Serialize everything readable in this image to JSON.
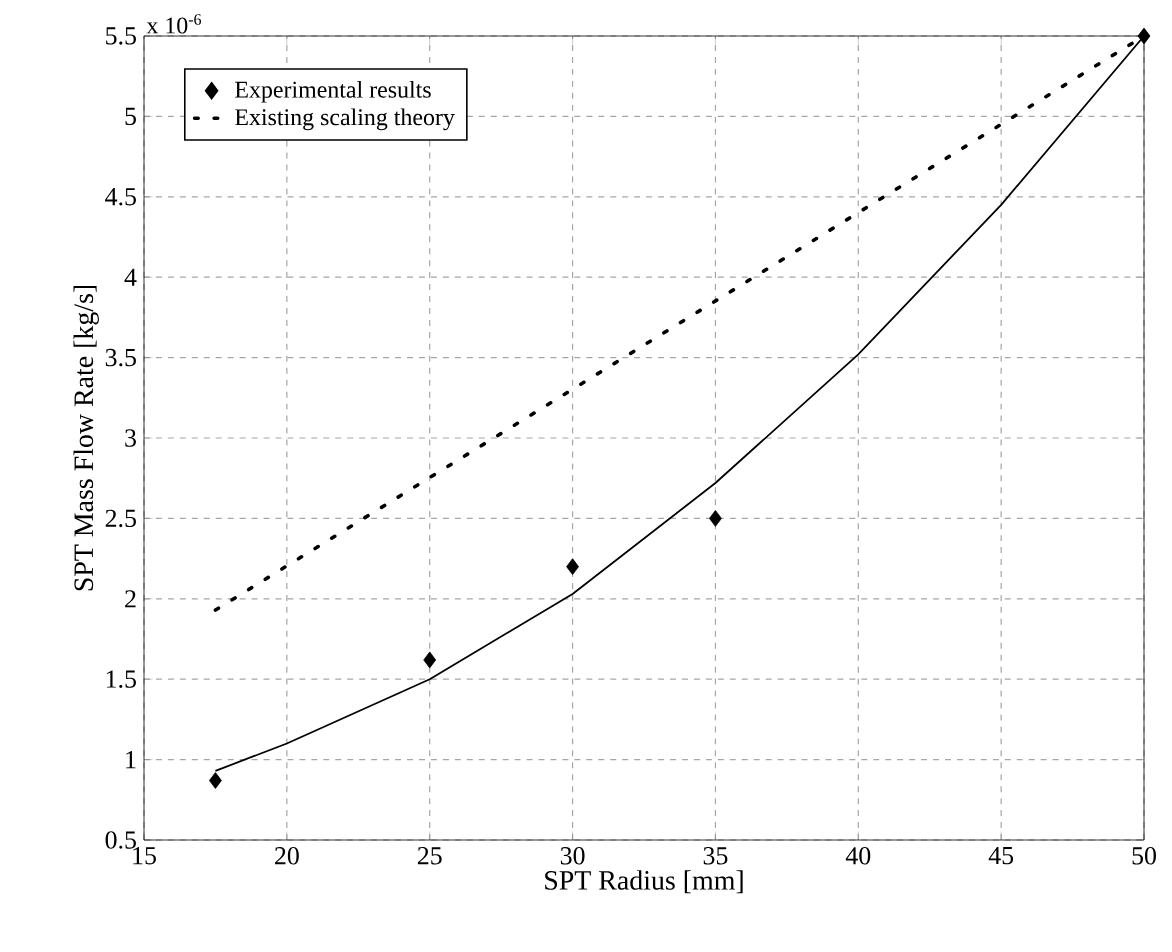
{
  "chart_data": {
    "type": "line",
    "xlabel": "SPT Radius [mm]",
    "ylabel": "SPT Mass Flow Rate [kg/s]",
    "annotations": [
      "x 10$^{-6}$"
    ],
    "xlim": [
      15,
      50
    ],
    "xticks": [
      15,
      20,
      25,
      30,
      35,
      40,
      45,
      50
    ],
    "ylim": [
      0.5,
      5.5
    ],
    "yticks": [
      0.5,
      1,
      1.5,
      2,
      2.5,
      3,
      3.5,
      4,
      4.5,
      5,
      5.5
    ],
    "grid": true,
    "legend": "top left",
    "series": [
      {
        "name": "Experimental results",
        "type": "scatter",
        "marker": "diamond",
        "color": "#000000",
        "x": [
          17.5,
          25,
          30,
          35,
          50
        ],
        "values": [
          0.87,
          1.62,
          2.2,
          2.5,
          5.5
        ]
      },
      {
        "name": "Existing scaling theory",
        "line_style": "dotted",
        "color": "#000000",
        "x": [
          17.5,
          50
        ],
        "values": [
          1.93,
          5.5
        ]
      },
      {
        "line_style": "solid",
        "color": "#000000",
        "x": [
          17.5,
          20,
          25,
          30,
          35,
          40,
          45,
          50
        ],
        "values": [
          0.93,
          1.1,
          1.5,
          2.03,
          2.72,
          3.52,
          4.45,
          5.5
        ]
      }
    ]
  }
}
